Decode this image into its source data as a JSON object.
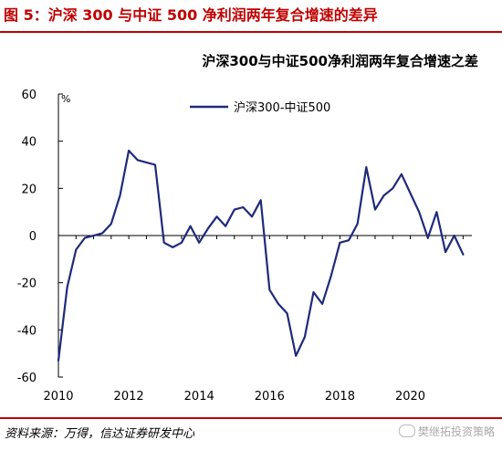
{
  "figure_title": "图 5：沪深 300 与中证 500 净利润两年复合增速的差异",
  "source": "资料来源：万得，信达证券研发中心",
  "watermark": "樊继拓投资策略",
  "colors": {
    "accent": "#c00000",
    "line": "#1f2a7a",
    "axis": "#000000"
  },
  "chart_data": {
    "type": "line",
    "title": "沪深300与中证500净利润两年复合增速之差",
    "unit_label": "%",
    "ylim": [
      -60,
      60
    ],
    "y_ticks": [
      60,
      40,
      20,
      0,
      -20,
      -40,
      -60
    ],
    "xlim": [
      2010,
      2021.75
    ],
    "x_ticks": [
      2010,
      2012,
      2014,
      2016,
      2018,
      2020
    ],
    "legend_position": "top-center",
    "series": [
      {
        "name": "沪深300-中证500",
        "x": [
          2010.0,
          2010.25,
          2010.5,
          2010.75,
          2011.0,
          2011.25,
          2011.5,
          2011.75,
          2012.0,
          2012.25,
          2012.5,
          2012.75,
          2013.0,
          2013.25,
          2013.5,
          2013.75,
          2014.0,
          2014.25,
          2014.5,
          2014.75,
          2015.0,
          2015.25,
          2015.5,
          2015.75,
          2016.0,
          2016.25,
          2016.5,
          2016.75,
          2017.0,
          2017.25,
          2017.5,
          2017.75,
          2018.0,
          2018.25,
          2018.5,
          2018.75,
          2019.0,
          2019.25,
          2019.5,
          2019.75,
          2020.0,
          2020.25,
          2020.5,
          2020.75,
          2021.0,
          2021.25,
          2021.5
        ],
        "values": [
          -53,
          -22,
          -6,
          -1,
          0,
          1,
          5,
          17,
          36,
          32,
          31,
          30,
          -3,
          -5,
          -3,
          4,
          -3,
          3,
          8,
          4,
          11,
          12,
          8,
          15,
          -23,
          -29,
          -33,
          -51,
          -43,
          -24,
          -29,
          -17,
          -3,
          -2,
          5,
          29,
          11,
          17,
          20,
          26,
          18,
          10,
          -1,
          10,
          -7,
          0,
          -8
        ]
      }
    ]
  }
}
